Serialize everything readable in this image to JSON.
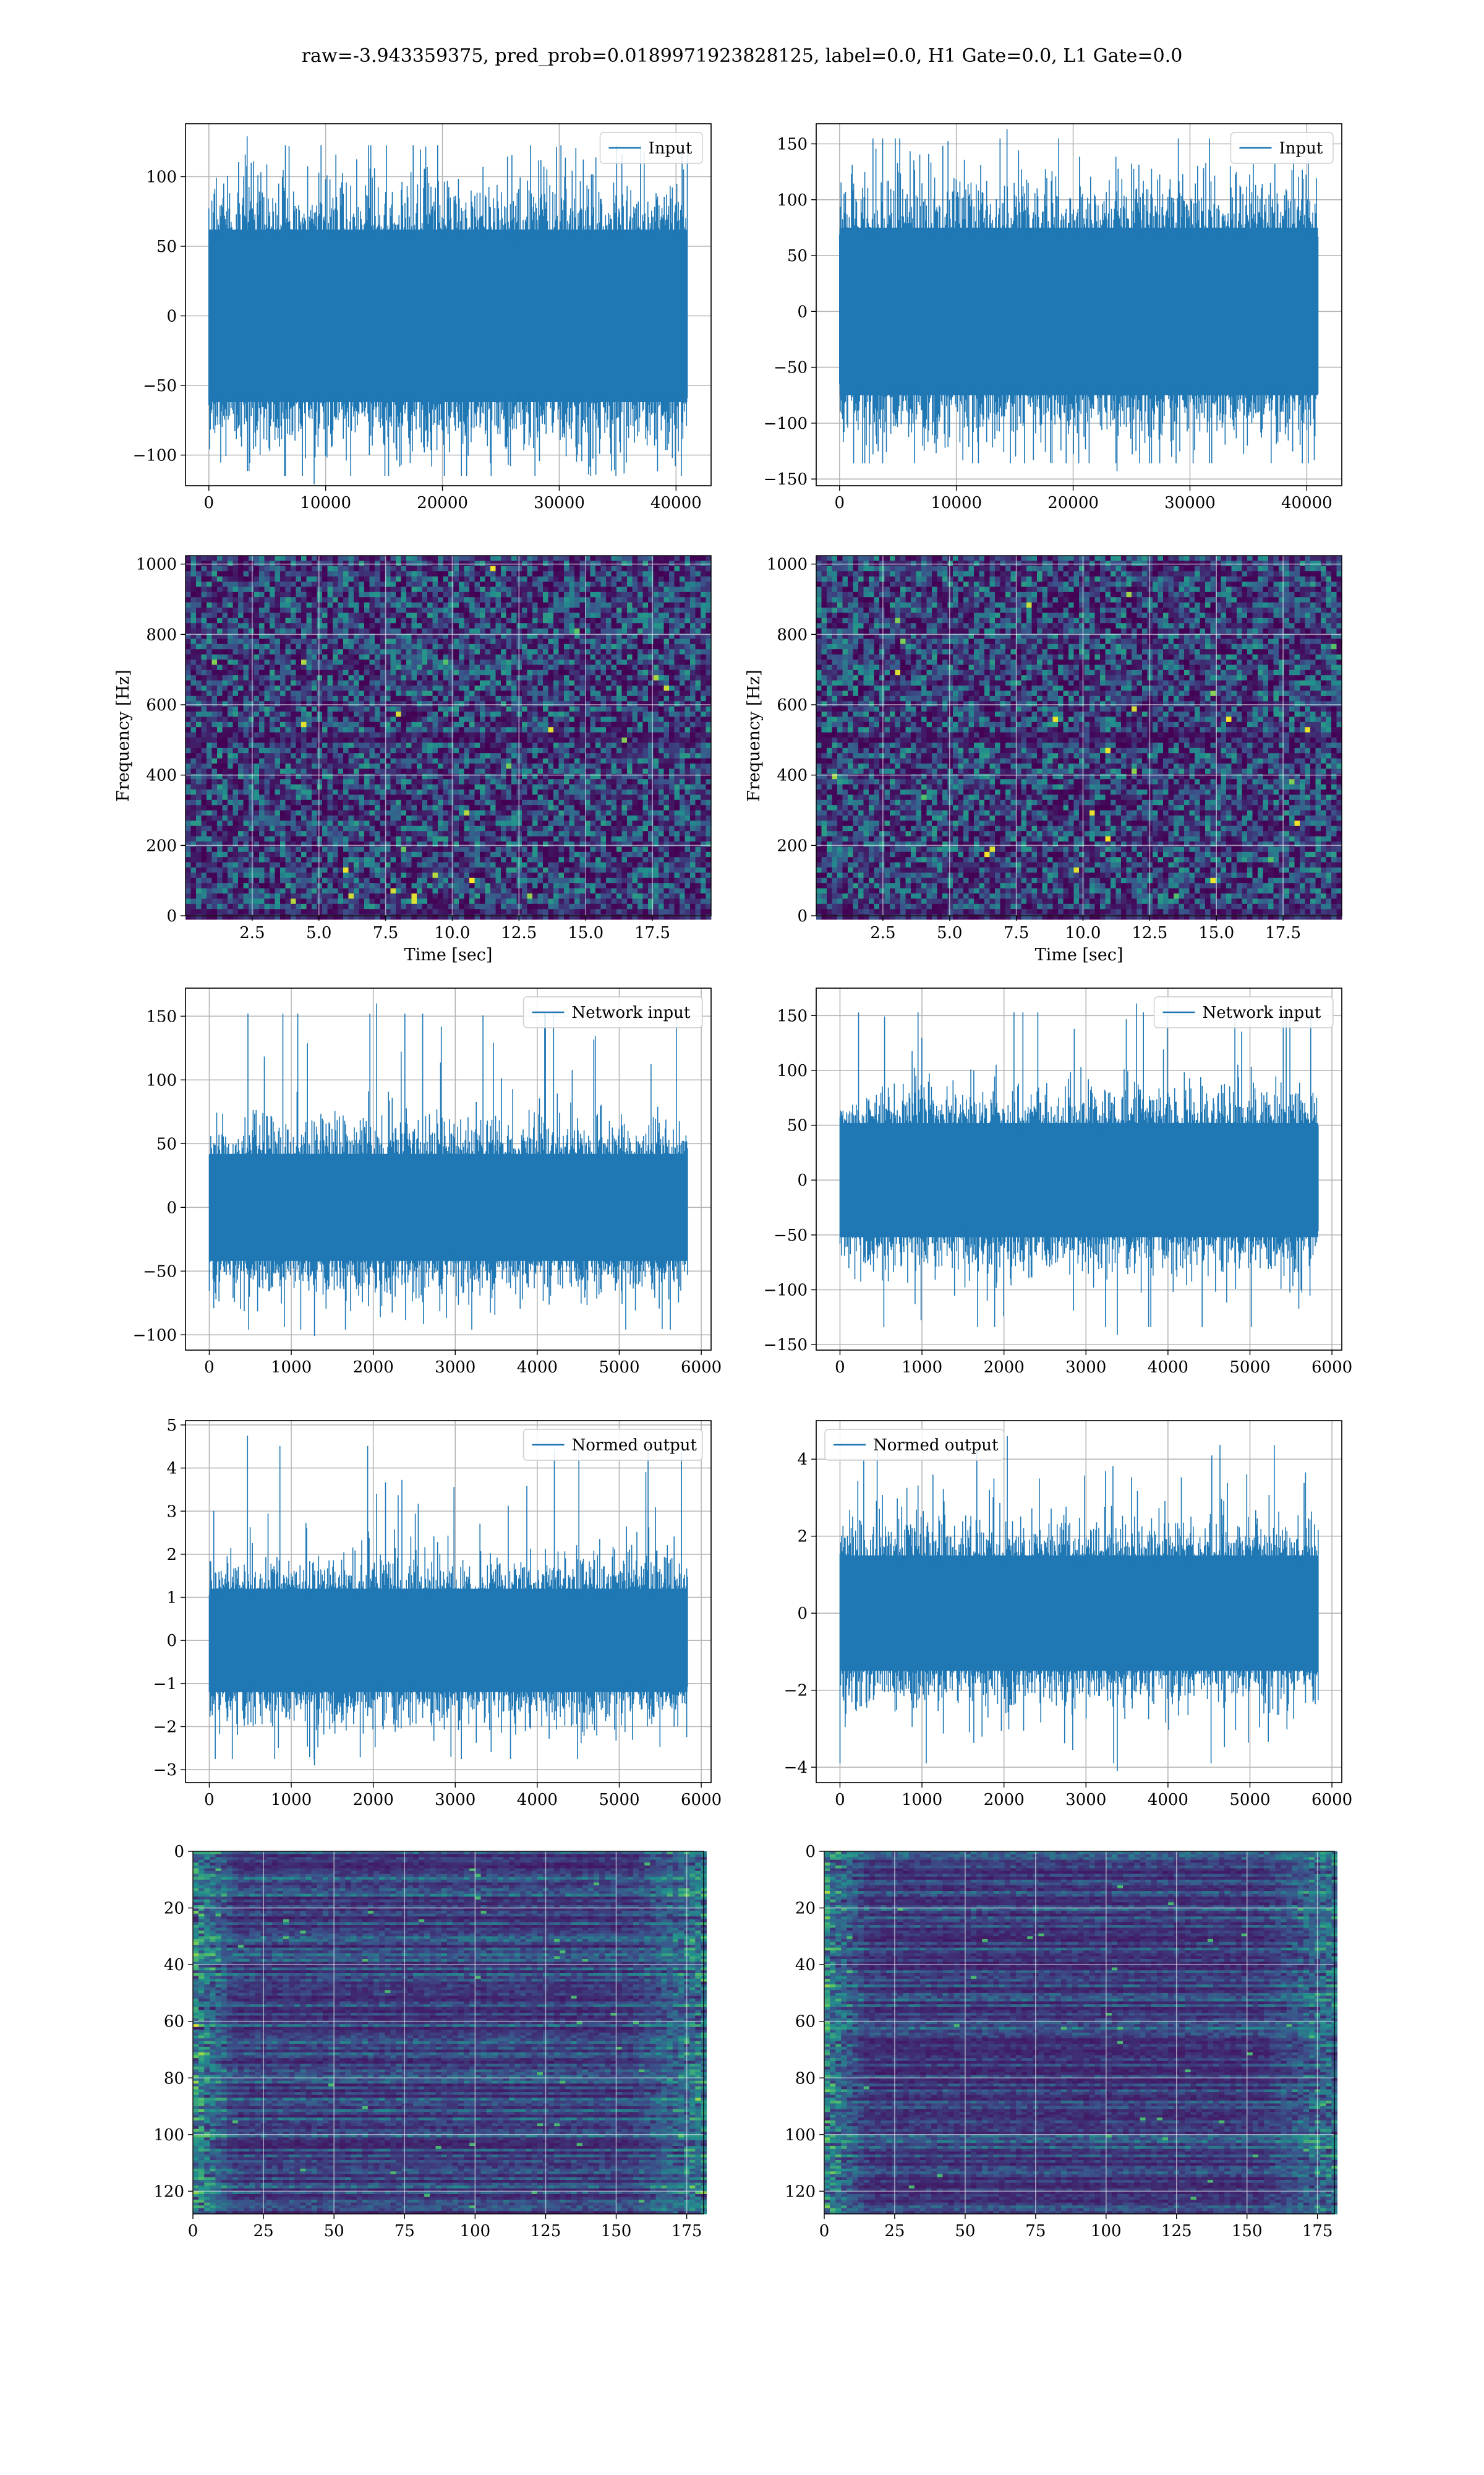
{
  "title": "raw=-3.943359375, pred_prob=0.0189971923828125, label=0.0, H1 Gate=0.0, L1 Gate=0.0",
  "colors": {
    "series": "#1f77b4",
    "grid": "#b0b0b0",
    "colormap": [
      "#440154",
      "#3b528b",
      "#21908d",
      "#5dc963",
      "#fde725"
    ]
  },
  "chart_data": [
    {
      "id": "input-h1",
      "type": "line",
      "legend": "Input",
      "legend_loc": "upper right",
      "xlim": [
        -2000,
        43000
      ],
      "ylim": [
        -122,
        138
      ],
      "xticks": [
        0,
        10000,
        20000,
        30000,
        40000
      ],
      "yticks": [
        -100,
        -50,
        0,
        50,
        100
      ],
      "series": [
        {
          "name": "Input",
          "n_samples": 40960,
          "x_range": [
            0,
            40960
          ],
          "core_band": [
            -62,
            62
          ],
          "min": -121,
          "max": 129
        }
      ],
      "grid": true
    },
    {
      "id": "input-l1",
      "type": "line",
      "legend": "Input",
      "legend_loc": "upper right",
      "xlim": [
        -2000,
        43000
      ],
      "ylim": [
        -156,
        168
      ],
      "xticks": [
        0,
        10000,
        20000,
        30000,
        40000
      ],
      "yticks": [
        -150,
        -100,
        -50,
        0,
        50,
        100,
        150
      ],
      "series": [
        {
          "name": "Input",
          "n_samples": 40960,
          "x_range": [
            0,
            40960
          ],
          "core_band": [
            -75,
            75
          ],
          "min": -143,
          "max": 163
        }
      ],
      "grid": true
    },
    {
      "id": "spectrogram-h1",
      "type": "heatmap",
      "xlabel": "Time [sec]",
      "ylabel": "Frequency [Hz]",
      "xlim": [
        0,
        19.7
      ],
      "ylim": [
        0,
        1024
      ],
      "xticks": [
        2.5,
        5.0,
        7.5,
        10.0,
        12.5,
        15.0,
        17.5
      ],
      "yticks": [
        0,
        200,
        400,
        600,
        800,
        1000
      ],
      "colormap": "viridis",
      "grid": true
    },
    {
      "id": "spectrogram-l1",
      "type": "heatmap",
      "xlabel": "Time [sec]",
      "ylabel": "Frequency [Hz]",
      "xlim": [
        0,
        19.7
      ],
      "ylim": [
        0,
        1024
      ],
      "xticks": [
        2.5,
        5.0,
        7.5,
        10.0,
        12.5,
        15.0,
        17.5
      ],
      "yticks": [
        0,
        200,
        400,
        600,
        800,
        1000
      ],
      "colormap": "viridis",
      "grid": true
    },
    {
      "id": "network-input-h1",
      "type": "line",
      "legend": "Network input",
      "legend_loc": "upper right",
      "xlim": [
        -290,
        6120
      ],
      "ylim": [
        -112,
        172
      ],
      "xticks": [
        0,
        1000,
        2000,
        3000,
        4000,
        5000,
        6000
      ],
      "yticks": [
        -100,
        -50,
        0,
        50,
        100,
        150
      ],
      "series": [
        {
          "name": "Network input",
          "n_samples": 5832,
          "x_range": [
            0,
            5832
          ],
          "core_band": [
            -42,
            42
          ],
          "min": -101,
          "max": 160
        }
      ],
      "grid": true
    },
    {
      "id": "network-input-l1",
      "type": "line",
      "legend": "Network input",
      "legend_loc": "upper right",
      "xlim": [
        -290,
        6120
      ],
      "ylim": [
        -155,
        175
      ],
      "xticks": [
        0,
        1000,
        2000,
        3000,
        4000,
        5000,
        6000
      ],
      "yticks": [
        -150,
        -100,
        -50,
        0,
        50,
        100,
        150
      ],
      "series": [
        {
          "name": "Network input",
          "n_samples": 5832,
          "x_range": [
            0,
            5832
          ],
          "core_band": [
            -52,
            52
          ],
          "min": -141,
          "max": 161
        }
      ],
      "grid": true
    },
    {
      "id": "normed-output-h1",
      "type": "line",
      "legend": "Normed output",
      "legend_loc": "upper right",
      "xlim": [
        -290,
        6120
      ],
      "ylim": [
        -3.3,
        5.1
      ],
      "xticks": [
        0,
        1000,
        2000,
        3000,
        4000,
        5000,
        6000
      ],
      "yticks": [
        -3,
        -2,
        -1,
        0,
        1,
        2,
        3,
        4,
        5
      ],
      "series": [
        {
          "name": "Normed output",
          "n_samples": 5832,
          "x_range": [
            0,
            5832
          ],
          "core_band": [
            -1.2,
            1.2
          ],
          "min": -2.9,
          "max": 4.75
        }
      ],
      "grid": true
    },
    {
      "id": "normed-output-l1",
      "type": "line",
      "legend": "Normed output",
      "legend_loc": "upper left",
      "xlim": [
        -290,
        6120
      ],
      "ylim": [
        -4.4,
        5.0
      ],
      "xticks": [
        0,
        1000,
        2000,
        3000,
        4000,
        5000,
        6000
      ],
      "yticks": [
        -4,
        -2,
        0,
        2,
        4
      ],
      "series": [
        {
          "name": "Normed output",
          "n_samples": 5832,
          "x_range": [
            0,
            5832
          ],
          "core_band": [
            -1.5,
            1.5
          ],
          "min": -4.1,
          "max": 4.6
        }
      ],
      "grid": true
    },
    {
      "id": "feature-map-h1",
      "type": "heatmap",
      "xlim": [
        0,
        181
      ],
      "ylim": [
        128,
        0
      ],
      "xticks": [
        0,
        25,
        50,
        75,
        100,
        125,
        150,
        175
      ],
      "yticks": [
        0,
        20,
        40,
        60,
        80,
        100,
        120
      ],
      "rows": 128,
      "cols": 181,
      "colormap": "viridis",
      "grid": true
    },
    {
      "id": "feature-map-l1",
      "type": "heatmap",
      "xlim": [
        0,
        181
      ],
      "ylim": [
        128,
        0
      ],
      "xticks": [
        0,
        25,
        50,
        75,
        100,
        125,
        150,
        175
      ],
      "yticks": [
        0,
        20,
        40,
        60,
        80,
        100,
        120
      ],
      "rows": 128,
      "cols": 181,
      "colormap": "viridis",
      "grid": true
    }
  ]
}
